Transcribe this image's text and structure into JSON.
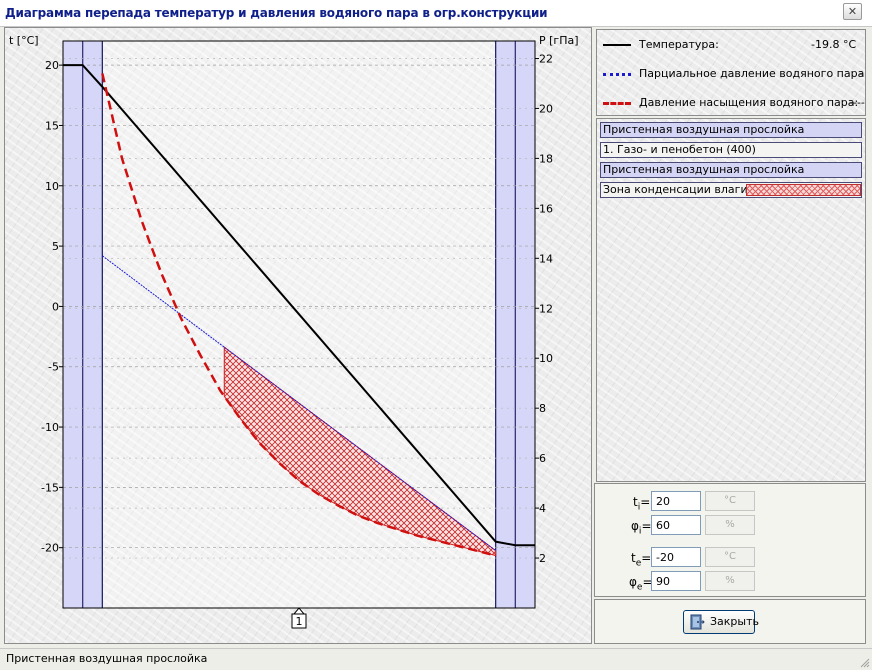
{
  "window": {
    "title": "Диаграмма перепада температур и давления водяного пара в огр.конструкции",
    "close_glyph": "✕"
  },
  "chart_data": {
    "type": "line",
    "ylabel_left": "t [°C]",
    "ylabel_right": "P [гПа]",
    "y_left_ticks": [
      20,
      15,
      10,
      5,
      0,
      -5,
      -10,
      -15,
      -20
    ],
    "y_left_range": [
      -25,
      22
    ],
    "y_right_ticks": [
      22,
      20,
      18,
      16,
      14,
      12,
      10,
      8,
      6,
      4,
      2
    ],
    "y_right_range": [
      0,
      22.7
    ],
    "x_range": [
      -0.1,
      1.1
    ],
    "layer_bounds": [
      0,
      1
    ],
    "inner_air_zone": [
      -0.05,
      0
    ],
    "outer_air_zone": [
      1,
      1.05
    ],
    "section_marker": "1",
    "grid": true,
    "series": [
      {
        "name": "Температура",
        "color": "#000000",
        "axis": "left",
        "style": "solid",
        "x": [
          -0.1,
          -0.05,
          0.0,
          1.0,
          1.05,
          1.1
        ],
        "y": [
          20,
          20,
          18.2,
          -19.5,
          -19.8,
          -19.8
        ]
      },
      {
        "name": "Парциальное давление водяного пара",
        "color": "#1a1ad0",
        "axis": "right",
        "style": "dotted",
        "x": [
          0.0,
          1.0
        ],
        "y": [
          14.1,
          2.3
        ]
      },
      {
        "name": "Давление насыщения водяного пара",
        "color": "#d01010",
        "axis": "right",
        "style": "dashed",
        "x": [
          0.0,
          0.05,
          0.1,
          0.15,
          0.2,
          0.25,
          0.3,
          0.35,
          0.4,
          0.45,
          0.5,
          0.55,
          0.6,
          0.65,
          0.7,
          0.75,
          0.8,
          0.85,
          0.9,
          0.95,
          1.0
        ],
        "y": [
          21.4,
          18.0,
          15.5,
          13.4,
          11.6,
          10.1,
          8.7,
          7.6,
          6.6,
          5.8,
          5.1,
          4.55,
          4.1,
          3.7,
          3.4,
          3.15,
          2.9,
          2.7,
          2.5,
          2.3,
          2.1
        ]
      }
    ],
    "condensation_zone": {
      "from_x": 0.31,
      "to_x": 1.0,
      "color": "#d02020"
    }
  },
  "legend": {
    "temperature": {
      "label": "Температура:",
      "value": "-19.8 °C",
      "color": "#000000"
    },
    "partial": {
      "label": "Парциальное давление водяного пара:",
      "value": "-",
      "color": "#1a1ad0"
    },
    "saturation": {
      "label": "Давление насыщения водяного пара:",
      "value": "----",
      "color": "#d01010"
    }
  },
  "layers": {
    "items": [
      {
        "label": "Пристенная воздушная прослойка",
        "kind": "air"
      },
      {
        "label": "1. Газо- и пенобетон (400)",
        "kind": "material"
      },
      {
        "label": "Пристенная воздушная прослойка",
        "kind": "air"
      }
    ],
    "condensation_label": "Зона конденсации влаги ->"
  },
  "params": {
    "ti": {
      "sym": "t",
      "sub": "i",
      "value": "20",
      "unit": "°C"
    },
    "phi_i": {
      "sym": "φ",
      "sub": "i",
      "value": "60",
      "unit": "%"
    },
    "te": {
      "sym": "t",
      "sub": "e",
      "value": "-20",
      "unit": "°C"
    },
    "phi_e": {
      "sym": "φ",
      "sub": "e",
      "value": "90",
      "unit": "%"
    }
  },
  "buttons": {
    "close_label": "Закрыть",
    "close_icon": "door-icon"
  },
  "status": {
    "text": "Пристенная воздушная прослойка"
  }
}
